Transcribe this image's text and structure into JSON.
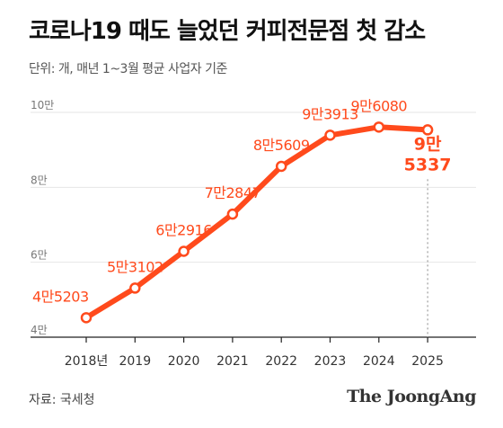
{
  "title": "코로나19 때도 늘었던 커피전문점 첫 감소",
  "subtitle": "단위: 개, 매년 1~3월 평균 사업자 기준",
  "source": "자료: 국세청",
  "brand": "The JoongAng",
  "chart_data": {
    "type": "line",
    "categories": [
      "2018년",
      "2019",
      "2020",
      "2021",
      "2022",
      "2023",
      "2024",
      "2025"
    ],
    "values": [
      45203,
      53102,
      62916,
      72847,
      85609,
      93913,
      96080,
      95337
    ],
    "data_labels": [
      "4만5203",
      "5만3102",
      "6만2916",
      "7만2847",
      "8만5609",
      "9만3913",
      "9만6080",
      "9만\n5337"
    ],
    "yticks": [
      40000,
      60000,
      80000,
      100000
    ],
    "ytick_labels": [
      "4만",
      "6만",
      "8만",
      "10만"
    ],
    "ylim": [
      40000,
      100000
    ],
    "grid": true,
    "colors": {
      "line": "#ff4a1c",
      "grid": "#e6e6e6"
    }
  }
}
